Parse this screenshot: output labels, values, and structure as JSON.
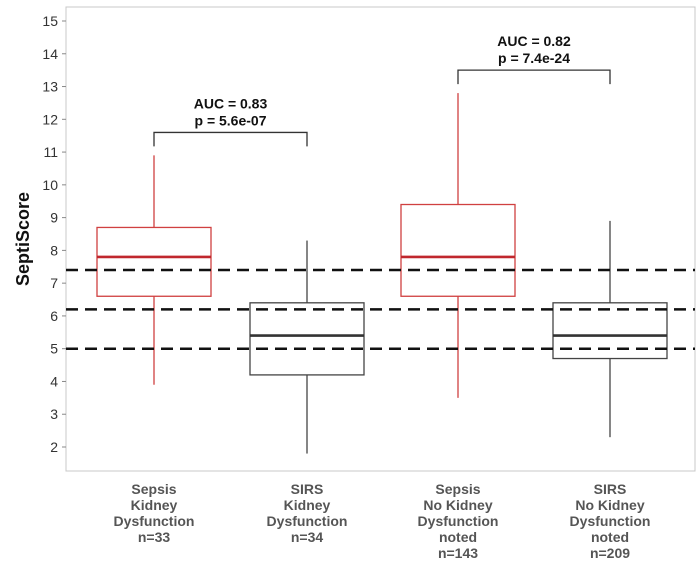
{
  "chart_data": {
    "type": "box",
    "ylabel": "SeptiScore",
    "ylim": [
      1.2,
      15.4
    ],
    "yticks": [
      2,
      3,
      4,
      5,
      6,
      7,
      8,
      9,
      10,
      11,
      12,
      13,
      14,
      15
    ],
    "grid": false,
    "categories": [
      {
        "lines": [
          "Sepsis",
          "Kidney",
          "Dysfunction",
          "n=33"
        ]
      },
      {
        "lines": [
          "SIRS",
          "Kidney",
          "Dysfunction",
          "n=34"
        ]
      },
      {
        "lines": [
          "Sepsis",
          "No Kidney",
          "Dysfunction",
          "noted",
          "n=143"
        ]
      },
      {
        "lines": [
          "SIRS",
          "No Kidney",
          "Dysfunction",
          "noted",
          "n=209"
        ]
      }
    ],
    "boxes": [
      {
        "min": 3.9,
        "q1": 6.6,
        "median": 7.8,
        "q3": 8.7,
        "max": 10.9,
        "color": "#d04040",
        "median_color": "#c0272d"
      },
      {
        "min": 1.8,
        "q1": 4.2,
        "median": 5.4,
        "q3": 6.4,
        "max": 8.3,
        "color": "#444444",
        "median_color": "#333333"
      },
      {
        "min": 3.5,
        "q1": 6.6,
        "median": 7.8,
        "q3": 9.4,
        "max": 12.8,
        "color": "#d04040",
        "median_color": "#c0272d"
      },
      {
        "min": 2.3,
        "q1": 4.7,
        "median": 5.4,
        "q3": 6.4,
        "max": 8.9,
        "color": "#444444",
        "median_color": "#333333"
      }
    ],
    "threshold_lines": [
      5.0,
      6.2,
      7.4
    ],
    "comparisons": [
      {
        "from": 0,
        "to": 1,
        "y": 11.6,
        "label_lines": [
          "AUC = 0.83",
          "p = 5.6e-07"
        ]
      },
      {
        "from": 2,
        "to": 3,
        "y": 13.5,
        "label_lines": [
          "AUC = 0.82",
          "p = 7.4e-24"
        ]
      }
    ]
  }
}
